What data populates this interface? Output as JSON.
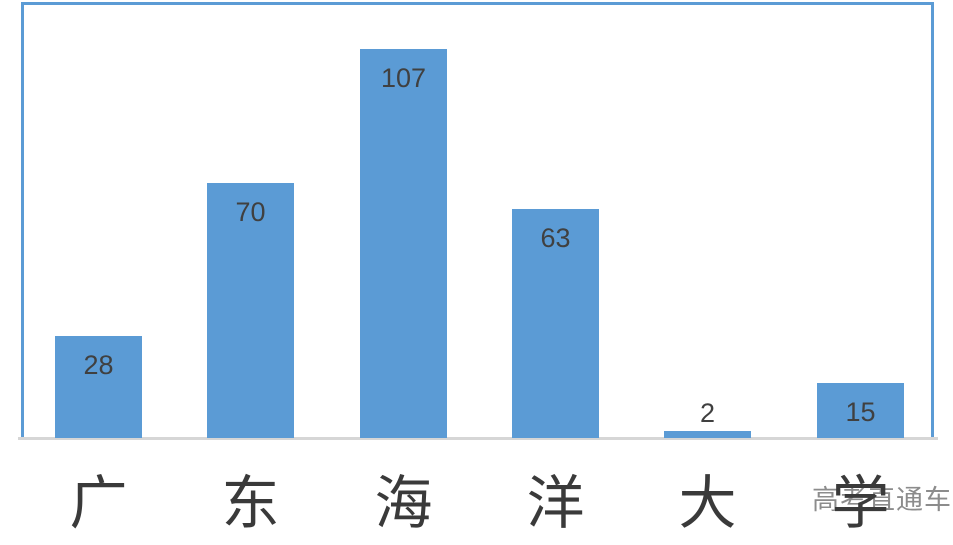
{
  "chart_data": {
    "type": "bar",
    "title": "",
    "xlabel": "",
    "ylabel": "",
    "categories": [
      "广",
      "东",
      "海",
      "洋",
      "大",
      "学"
    ],
    "values": [
      28,
      70,
      107,
      63,
      2,
      15
    ],
    "data_labels": [
      "28",
      "70",
      "107",
      "63",
      "2",
      "15"
    ],
    "ylim": [
      0,
      120
    ],
    "grid": false,
    "legend": "none",
    "bar_color": "#5b9bd5",
    "value_label_color": "#404040",
    "category_label_color": "#3a3a3a",
    "plot_border_color": "#5b9bd5",
    "axis_line_color": "#d6d6d6"
  },
  "watermark": {
    "text": "高考直通车",
    "color": "#8c8c8c"
  }
}
